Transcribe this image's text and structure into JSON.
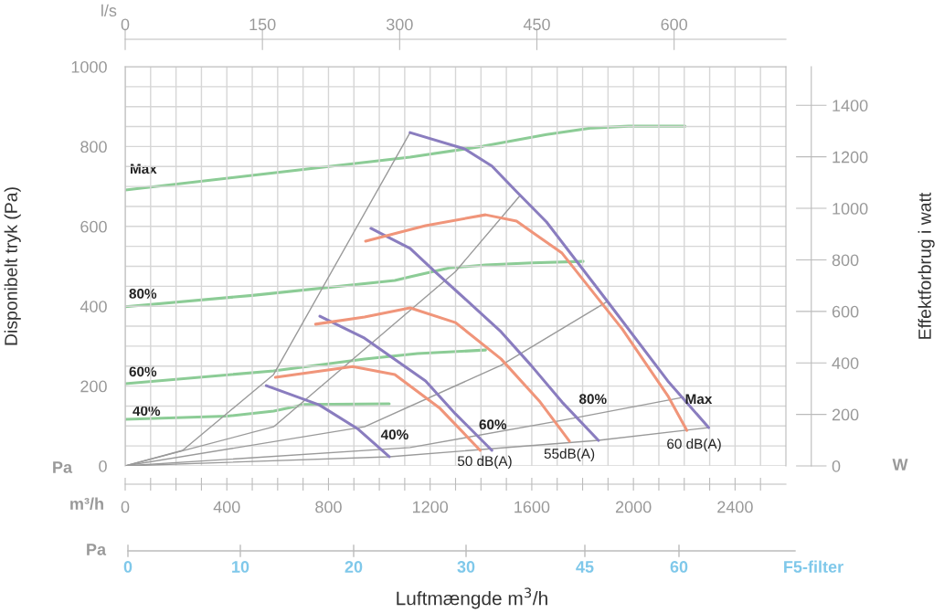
{
  "chart_data": {
    "type": "line",
    "xlabel": "Luftmængde m$^{3}$/h",
    "ylabel": "Disponibelt tryk (Pa)",
    "y2label": "Effektforbrug i watt",
    "x2label": "l/s",
    "annotations": [
      "Pa",
      "m³/h",
      "W",
      "Pa",
      "0",
      "10",
      "20",
      "30",
      "45",
      "60",
      "F5-filter"
    ],
    "xlim": [
      0,
      2600
    ],
    "xticks": [
      0,
      {
        "value": 100,
        "label": null
      },
      {
        "value": 200,
        "label": null
      },
      {
        "value": 300,
        "label": null
      },
      400,
      {
        "value": 500,
        "label": null
      },
      {
        "value": 600,
        "label": null
      },
      {
        "value": 700,
        "label": null
      },
      800,
      {
        "value": 900,
        "label": null
      },
      {
        "value": 1000,
        "label": null
      },
      {
        "value": 1100,
        "label": null
      },
      1200,
      {
        "value": 1300,
        "label": null
      },
      {
        "value": 1400,
        "label": null
      },
      {
        "value": 1500,
        "label": null
      },
      1600,
      {
        "value": 1700,
        "label": null
      },
      {
        "value": 1800,
        "label": null
      },
      {
        "value": 1900,
        "label": null
      },
      2000,
      {
        "value": 2100,
        "label": null
      },
      {
        "value": 2200,
        "label": null
      },
      {
        "value": 2300,
        "label": null
      },
      2400,
      {
        "value": 2500,
        "label": null
      }
    ],
    "ylim": [
      0,
      1000
    ],
    "yticks": [
      0,
      {
        "value": 50,
        "label": null
      },
      {
        "value": 100,
        "label": null
      },
      {
        "value": 150,
        "label": null
      },
      200,
      {
        "value": 250,
        "label": null
      },
      {
        "value": 300,
        "label": null
      },
      {
        "value": 350,
        "label": null
      },
      400,
      {
        "value": 450,
        "label": null
      },
      {
        "value": 500,
        "label": null
      },
      {
        "value": 550,
        "label": null
      },
      600,
      {
        "value": 650,
        "label": null
      },
      {
        "value": 700,
        "label": null
      },
      {
        "value": 750,
        "label": null
      },
      800,
      {
        "value": 850,
        "label": null
      },
      {
        "value": 900,
        "label": null
      },
      {
        "value": 950,
        "label": null
      },
      1000
    ],
    "y2lim": [
      0,
      1550
    ],
    "y2ticks": [
      0,
      200,
      400,
      600,
      800,
      1000,
      1200,
      1400
    ],
    "x2lim": [
      0,
      722.2
    ],
    "x2ticks": [
      0,
      150,
      300,
      450,
      600
    ],
    "grid": true,
    "marker": "none",
    "line_style": "solid",
    "series": [
      {
        "name": "Max",
        "color": "#8ccc96",
        "axis": "y2",
        "x": [
          0,
          560,
          1121,
          1408,
          1658,
          1837,
          1981,
          2203
        ],
        "values": [
          1071,
          1135,
          1199,
          1241,
          1287,
          1312,
          1319,
          1319
        ]
      },
      {
        "name": "80%",
        "color": "#8ccc96",
        "axis": "y2",
        "x": [
          0,
          500,
          1061,
          1121,
          1275,
          1418,
          1600,
          1802
        ],
        "values": [
          618,
          662,
          720,
          734,
          769,
          780,
          788,
          794
        ]
      },
      {
        "name": "60%",
        "color": "#8ccc96",
        "axis": "y2",
        "x": [
          0,
          584,
          942,
          1150,
          1418
        ],
        "values": [
          319,
          369,
          415,
          436,
          450
        ]
      },
      {
        "name": "40%",
        "color": "#8ccc96",
        "axis": "y2",
        "x": [
          0,
          400,
          584,
          702,
          1039
        ],
        "values": [
          181,
          193,
          213,
          238,
          241
        ]
      },
      {
        "name": "Max",
        "color": "#8a7dbf",
        "x": [
          1121,
          1336,
          1443,
          1540,
          1658,
          1898,
          2135,
          2296
        ],
        "values": [
          835,
          794,
          751,
          687,
          611,
          412,
          213,
          96
        ]
      },
      {
        "name": "80%",
        "color": "#8a7dbf",
        "x": [
          967,
          1121,
          1218,
          1361,
          1479,
          1597,
          1719,
          1862
        ],
        "values": [
          595,
          545,
          487,
          405,
          336,
          252,
          160,
          64
        ]
      },
      {
        "name": "60%",
        "color": "#8a7dbf",
        "x": [
          766,
          942,
          1182,
          1300,
          1443
        ],
        "values": [
          375,
          320,
          213,
          130,
          39
        ]
      },
      {
        "name": "40%",
        "color": "#8a7dbf",
        "x": [
          555,
          763,
          917,
          1039
        ],
        "values": [
          201,
          153,
          92,
          23
        ]
      },
      {
        "name": "60 dB(A)",
        "color": "#f0957a",
        "x": [
          946,
          1182,
          1418,
          1540,
          1719,
          1956,
          2135,
          2210
        ],
        "values": [
          563,
          602,
          629,
          613,
          533,
          343,
          176,
          89
        ]
      },
      {
        "name": "55dB(A)",
        "color": "#f0957a",
        "x": [
          749,
          942,
          1121,
          1300,
          1479,
          1633,
          1748
        ],
        "values": [
          355,
          373,
          396,
          359,
          268,
          160,
          62
        ]
      },
      {
        "name": "50 dB(A)",
        "color": "#f0957a",
        "x": [
          591,
          895,
          1061,
          1239,
          1397
        ],
        "values": [
          222,
          249,
          229,
          144,
          39
        ]
      },
      {
        "color": "#9a9a9a",
        "x": [
          0,
          226,
          584,
          1121
        ],
        "values": [
          0,
          39,
          229,
          835
        ]
      },
      {
        "color": "#9a9a9a",
        "x": [
          0,
          584,
          1300,
          1551
        ],
        "values": [
          0,
          98,
          487,
          675
        ]
      },
      {
        "color": "#9a9a9a",
        "x": [
          0,
          942,
          1479,
          1898
        ],
        "values": [
          0,
          98,
          252,
          412
        ]
      },
      {
        "color": "#9a9a9a",
        "x": [
          0,
          1121,
          1719,
          2196
        ],
        "values": [
          0,
          46,
          114,
          172
        ]
      },
      {
        "color": "#9a9a9a",
        "x": [
          0,
          1039,
          1862,
          2296
        ],
        "values": [
          0,
          23,
          64,
          96
        ]
      }
    ]
  }
}
